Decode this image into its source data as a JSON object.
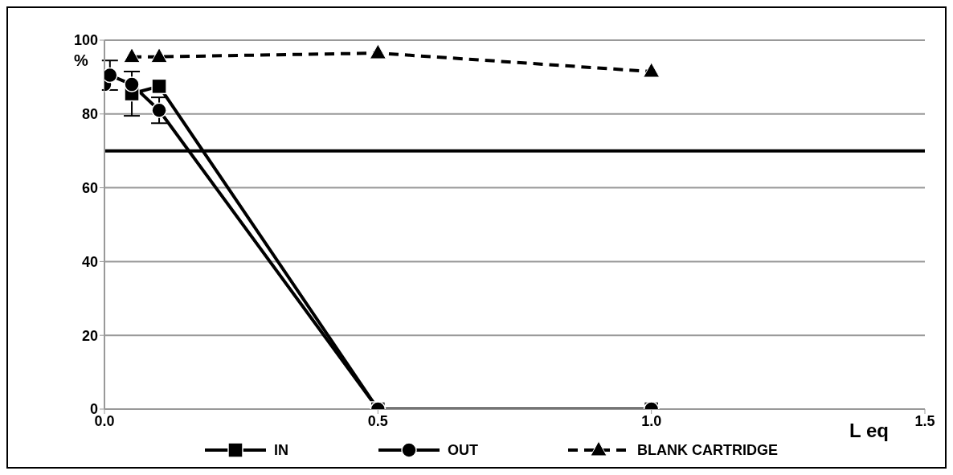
{
  "chart_data": {
    "type": "line",
    "xlabel": "L eq",
    "ylabel": "%",
    "xlim": [
      0,
      1.5
    ],
    "xticks": [
      {
        "value": 0,
        "label": "0.0"
      },
      0.5,
      {
        "value": 1,
        "label": "1.0"
      },
      1.5
    ],
    "ylim": [
      0,
      100
    ],
    "yticks": [
      0,
      20,
      40,
      60,
      80,
      100
    ],
    "grid": "y",
    "legend": "bottom",
    "ref_lines": [
      {
        "axis": "y",
        "value": 70,
        "color": "#000000",
        "line_style": "solid"
      }
    ],
    "series": [
      {
        "name": "IN",
        "color": "#000000",
        "marker": "square",
        "line_style": "solid",
        "x": [
          0.05,
          0.1,
          0.5,
          1
        ],
        "values": [
          85.5,
          87.5,
          0,
          0
        ],
        "errors": [
          6,
          null,
          null,
          null
        ]
      },
      {
        "name": "OUT",
        "color": "#000000",
        "marker": "circle",
        "line_style": "solid",
        "x": [
          0,
          0.01,
          0.05,
          0.1,
          0.5,
          1
        ],
        "values": [
          88,
          90.5,
          88,
          81,
          0,
          0
        ],
        "errors": [
          null,
          4,
          null,
          3.5,
          null,
          null
        ]
      },
      {
        "name": "BLANK CARTRIDGE",
        "color": "#000000",
        "marker": "triangle",
        "line_style": "dashed",
        "x": [
          0.05,
          0.1,
          0.5,
          1
        ],
        "values": [
          95.5,
          95.5,
          96.5,
          91.5
        ]
      }
    ]
  }
}
